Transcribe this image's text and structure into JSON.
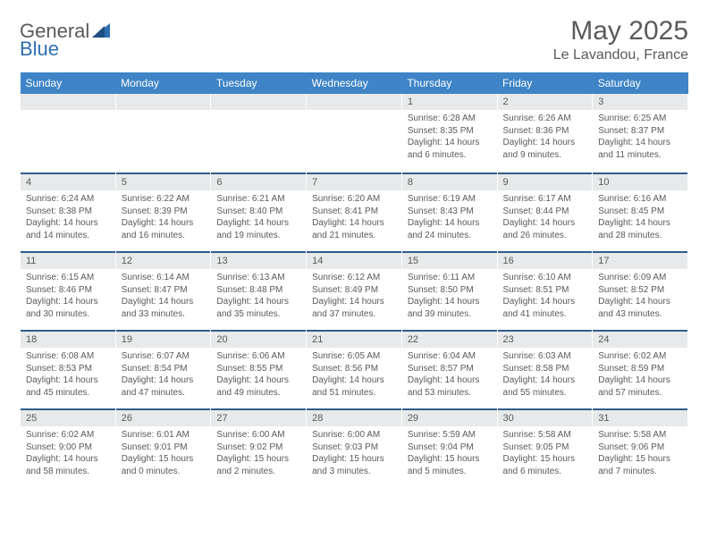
{
  "logo": {
    "word1": "General",
    "word2": "Blue",
    "word1_color": "#6a6a6a",
    "word2_color": "#2f6fb0",
    "tri_color": "#2f6fb0"
  },
  "title": "May 2025",
  "location": "Le Lavandou, France",
  "colors": {
    "header_bg": "#3e84c6",
    "header_text": "#ffffff",
    "daynum_bg": "#e7e9ea",
    "text": "#5a5a5a",
    "week_border": "#2f5d8a"
  },
  "day_names": [
    "Sunday",
    "Monday",
    "Tuesday",
    "Wednesday",
    "Thursday",
    "Friday",
    "Saturday"
  ],
  "weeks": [
    [
      null,
      null,
      null,
      null,
      {
        "n": "1",
        "sr": "6:28 AM",
        "ss": "8:35 PM",
        "dl": "14 hours and 6 minutes."
      },
      {
        "n": "2",
        "sr": "6:26 AM",
        "ss": "8:36 PM",
        "dl": "14 hours and 9 minutes."
      },
      {
        "n": "3",
        "sr": "6:25 AM",
        "ss": "8:37 PM",
        "dl": "14 hours and 11 minutes."
      }
    ],
    [
      {
        "n": "4",
        "sr": "6:24 AM",
        "ss": "8:38 PM",
        "dl": "14 hours and 14 minutes."
      },
      {
        "n": "5",
        "sr": "6:22 AM",
        "ss": "8:39 PM",
        "dl": "14 hours and 16 minutes."
      },
      {
        "n": "6",
        "sr": "6:21 AM",
        "ss": "8:40 PM",
        "dl": "14 hours and 19 minutes."
      },
      {
        "n": "7",
        "sr": "6:20 AM",
        "ss": "8:41 PM",
        "dl": "14 hours and 21 minutes."
      },
      {
        "n": "8",
        "sr": "6:19 AM",
        "ss": "8:43 PM",
        "dl": "14 hours and 24 minutes."
      },
      {
        "n": "9",
        "sr": "6:17 AM",
        "ss": "8:44 PM",
        "dl": "14 hours and 26 minutes."
      },
      {
        "n": "10",
        "sr": "6:16 AM",
        "ss": "8:45 PM",
        "dl": "14 hours and 28 minutes."
      }
    ],
    [
      {
        "n": "11",
        "sr": "6:15 AM",
        "ss": "8:46 PM",
        "dl": "14 hours and 30 minutes."
      },
      {
        "n": "12",
        "sr": "6:14 AM",
        "ss": "8:47 PM",
        "dl": "14 hours and 33 minutes."
      },
      {
        "n": "13",
        "sr": "6:13 AM",
        "ss": "8:48 PM",
        "dl": "14 hours and 35 minutes."
      },
      {
        "n": "14",
        "sr": "6:12 AM",
        "ss": "8:49 PM",
        "dl": "14 hours and 37 minutes."
      },
      {
        "n": "15",
        "sr": "6:11 AM",
        "ss": "8:50 PM",
        "dl": "14 hours and 39 minutes."
      },
      {
        "n": "16",
        "sr": "6:10 AM",
        "ss": "8:51 PM",
        "dl": "14 hours and 41 minutes."
      },
      {
        "n": "17",
        "sr": "6:09 AM",
        "ss": "8:52 PM",
        "dl": "14 hours and 43 minutes."
      }
    ],
    [
      {
        "n": "18",
        "sr": "6:08 AM",
        "ss": "8:53 PM",
        "dl": "14 hours and 45 minutes."
      },
      {
        "n": "19",
        "sr": "6:07 AM",
        "ss": "8:54 PM",
        "dl": "14 hours and 47 minutes."
      },
      {
        "n": "20",
        "sr": "6:06 AM",
        "ss": "8:55 PM",
        "dl": "14 hours and 49 minutes."
      },
      {
        "n": "21",
        "sr": "6:05 AM",
        "ss": "8:56 PM",
        "dl": "14 hours and 51 minutes."
      },
      {
        "n": "22",
        "sr": "6:04 AM",
        "ss": "8:57 PM",
        "dl": "14 hours and 53 minutes."
      },
      {
        "n": "23",
        "sr": "6:03 AM",
        "ss": "8:58 PM",
        "dl": "14 hours and 55 minutes."
      },
      {
        "n": "24",
        "sr": "6:02 AM",
        "ss": "8:59 PM",
        "dl": "14 hours and 57 minutes."
      }
    ],
    [
      {
        "n": "25",
        "sr": "6:02 AM",
        "ss": "9:00 PM",
        "dl": "14 hours and 58 minutes."
      },
      {
        "n": "26",
        "sr": "6:01 AM",
        "ss": "9:01 PM",
        "dl": "15 hours and 0 minutes."
      },
      {
        "n": "27",
        "sr": "6:00 AM",
        "ss": "9:02 PM",
        "dl": "15 hours and 2 minutes."
      },
      {
        "n": "28",
        "sr": "6:00 AM",
        "ss": "9:03 PM",
        "dl": "15 hours and 3 minutes."
      },
      {
        "n": "29",
        "sr": "5:59 AM",
        "ss": "9:04 PM",
        "dl": "15 hours and 5 minutes."
      },
      {
        "n": "30",
        "sr": "5:58 AM",
        "ss": "9:05 PM",
        "dl": "15 hours and 6 minutes."
      },
      {
        "n": "31",
        "sr": "5:58 AM",
        "ss": "9:06 PM",
        "dl": "15 hours and 7 minutes."
      }
    ]
  ],
  "labels": {
    "sunrise": "Sunrise:",
    "sunset": "Sunset:",
    "daylight": "Daylight:"
  }
}
